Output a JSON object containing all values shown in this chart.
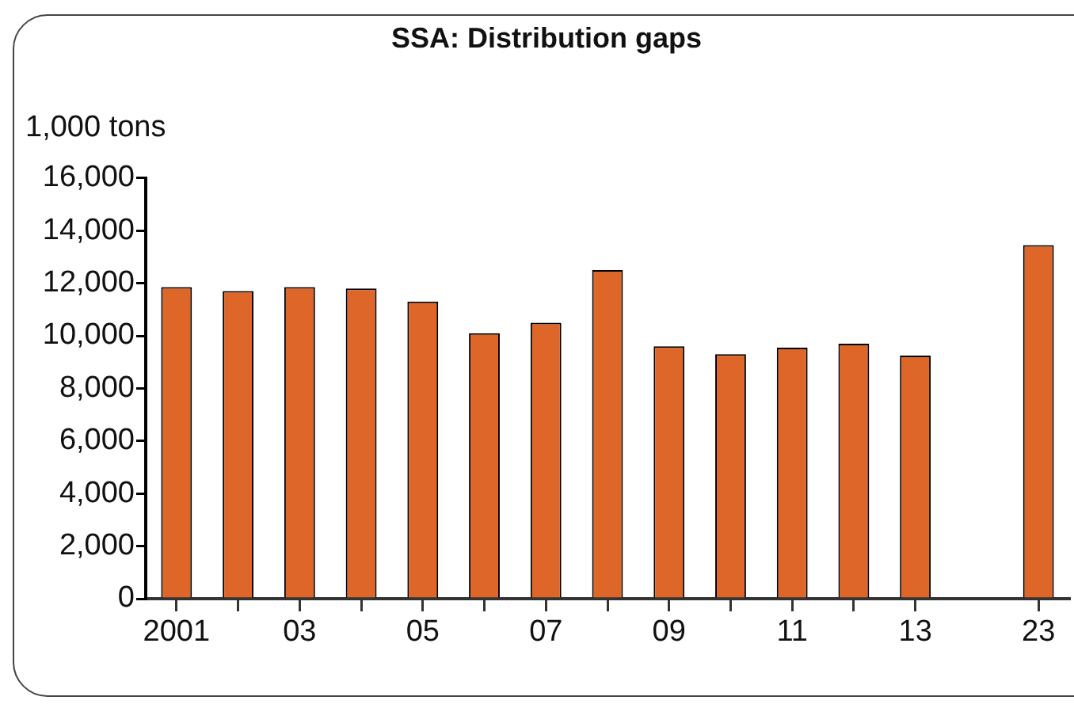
{
  "chart_data": {
    "type": "bar",
    "title": "SSA: Distribution gaps",
    "ylabel": "1,000 tons",
    "categories": [
      "2001",
      null,
      "03",
      null,
      "05",
      null,
      "07",
      null,
      "09",
      null,
      "11",
      null,
      "13",
      null,
      "23"
    ],
    "values": [
      11850,
      11700,
      11850,
      11800,
      11300,
      10100,
      10500,
      12500,
      9600,
      9300,
      9550,
      9700,
      9250,
      null,
      13450
    ],
    "color": "#dd6628",
    "ylim": [
      0,
      16000
    ],
    "yticks": [
      {
        "value": 0,
        "label": "0"
      },
      {
        "value": 2000,
        "label": "2,000"
      },
      {
        "value": 4000,
        "label": "4,000"
      },
      {
        "value": 6000,
        "label": "6,000"
      },
      {
        "value": 8000,
        "label": "8,000"
      },
      {
        "value": 10000,
        "label": "10,000"
      },
      {
        "value": 12000,
        "label": "12,000"
      },
      {
        "value": 14000,
        "label": "14,000"
      },
      {
        "value": 16000,
        "label": "16,000"
      }
    ],
    "grid": false,
    "legend": false
  }
}
